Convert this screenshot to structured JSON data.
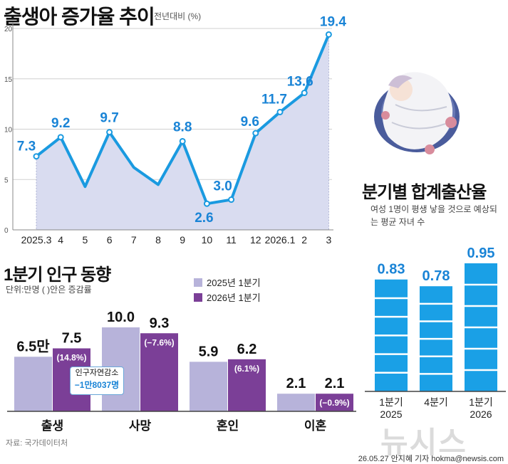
{
  "header": {
    "title": "출생아 증가율 추이",
    "subtitle": "전년대비 (%)"
  },
  "quarterly_rate": {
    "title": "분기별 합계출산율",
    "description": "여성 1명이 평생 낳을 것으로 예상되는 평균 자녀 수"
  },
  "population": {
    "title": "1분기 인구 동향",
    "unit": "단위:만명 ( )안은 증감률",
    "legend": [
      "2025년 1분기",
      "2026년 1분기"
    ],
    "natural_change_label": "인구자연감소",
    "natural_change_value": "−1만8037명"
  },
  "footer": {
    "source": "자료: 국가데이터처",
    "credit": "26.05.27 안지혜 기자 hokma@newsis.com",
    "watermark": "뉴시스"
  },
  "colors": {
    "line": "#1a9ae0",
    "area": "#d9dcf0",
    "bar_2025": "#b7b3da",
    "bar_2026": "#7b3f97",
    "bar_tfr": "#1aa0e6",
    "label_blue": "#1a84d6"
  },
  "chart_data": [
    {
      "type": "area",
      "title": "출생아 증가율 추이",
      "ylabel": "전년대비 (%)",
      "categories": [
        "2025.3",
        "4",
        "5",
        "6",
        "7",
        "8",
        "9",
        "10",
        "11",
        "12",
        "2026.1",
        "2",
        "3"
      ],
      "values": [
        7.3,
        9.2,
        4.3,
        9.7,
        6.2,
        4.5,
        8.8,
        2.6,
        3.0,
        9.6,
        11.7,
        13.6,
        19.4
      ],
      "labels": [
        "7.3",
        "9.2",
        "",
        "9.7",
        "",
        "",
        "8.8",
        "2.6",
        "3.0",
        "9.6",
        "11.7",
        "13.6",
        "19.4"
      ],
      "yticks": [
        0,
        5,
        10,
        15,
        20
      ],
      "ylim": [
        0,
        20
      ]
    },
    {
      "type": "bar",
      "title": "1분기 인구 동향",
      "categories": [
        "출생",
        "사망",
        "혼인",
        "이혼"
      ],
      "series": [
        {
          "name": "2025년 1분기",
          "values": [
            6.5,
            10.0,
            5.9,
            2.1
          ],
          "labels": [
            "6.5만",
            "10.0",
            "5.9",
            "2.1"
          ]
        },
        {
          "name": "2026년 1분기",
          "values": [
            7.5,
            9.3,
            6.2,
            2.1
          ],
          "labels": [
            "7.5",
            "9.3",
            "6.2",
            "2.1"
          ],
          "changes": [
            "(14.8%)",
            "(−7.6%)",
            "(6.1%)",
            "(−0.9%)"
          ]
        }
      ],
      "ylim": [
        0,
        10.0
      ]
    },
    {
      "type": "bar",
      "title": "분기별 합계출산율",
      "categories": [
        "1분기 2025",
        "4분기",
        "1분기 2026"
      ],
      "category_lines": [
        [
          "1분기",
          "2025"
        ],
        [
          "4분기",
          ""
        ],
        [
          "1분기",
          "2026"
        ]
      ],
      "values": [
        0.83,
        0.78,
        0.95
      ],
      "labels": [
        "0.83",
        "0.78",
        "0.95"
      ],
      "ylim": [
        0,
        0.95
      ]
    }
  ]
}
